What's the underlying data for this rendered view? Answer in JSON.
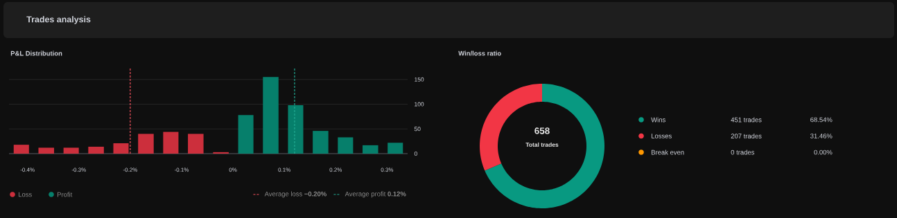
{
  "chart_data": [
    {
      "type": "histogram",
      "title": "P&L Distribution",
      "annotations": [
        "Trades analysis"
      ],
      "bins": [
        -0.436,
        -0.388,
        -0.339,
        -0.291,
        -0.242,
        -0.194,
        -0.145,
        -0.097,
        -0.048,
        0.001,
        0.049,
        0.098,
        0.146,
        0.195,
        0.243,
        0.292,
        0.34
      ],
      "series": [
        {
          "name": "Loss",
          "color": "#cc2f3c",
          "values": [
            18,
            12,
            12,
            14,
            21,
            40,
            44,
            40,
            3,
            null,
            null,
            null,
            null,
            null,
            null,
            null
          ]
        },
        {
          "name": "Profit",
          "color": "#067f6b",
          "values": [
            null,
            null,
            null,
            null,
            null,
            null,
            null,
            null,
            null,
            78,
            155,
            98,
            46,
            33,
            17,
            22
          ]
        }
      ],
      "xlim": [
        -0.436,
        0.34
      ],
      "xticks": [
        {
          "value": -0.4,
          "label": "-0.4%"
        },
        {
          "value": -0.3,
          "label": "-0.3%"
        },
        {
          "value": -0.2,
          "label": "-0.2%"
        },
        {
          "value": -0.1,
          "label": "-0.1%"
        },
        {
          "value": 0,
          "label": "0%"
        },
        {
          "value": 0.1,
          "label": "0.1%"
        },
        {
          "value": 0.2,
          "label": "0.2%"
        },
        {
          "value": 0.3,
          "label": "0.3%"
        }
      ],
      "ylim": [
        0,
        175
      ],
      "yticks": [
        0,
        50,
        100,
        150
      ],
      "grid": "y",
      "legend": "bottom",
      "ref_lines": [
        {
          "axis": "x",
          "value": -0.2,
          "label": "Average loss **−0.20%**",
          "color": "#f7525f",
          "line_style": "dashed"
        },
        {
          "axis": "x",
          "value": 0.12,
          "label": "Average profit **0.12%**",
          "color": "#22ab94",
          "line_style": "dashed"
        }
      ]
    },
    {
      "type": "donut",
      "title": "Win/loss ratio",
      "categories": [
        "Wins",
        "Losses",
        "Break even"
      ],
      "values": [
        451,
        207,
        0
      ],
      "colors": [
        "#089981",
        "#f23645",
        "#ff9800"
      ],
      "value_labels": [
        "451 trades",
        "207 trades",
        "0 trades"
      ],
      "annotations": [
        "658",
        "Total trades",
        "68.54%",
        "31.46%",
        "0.00%"
      ],
      "legend": "right"
    }
  ]
}
